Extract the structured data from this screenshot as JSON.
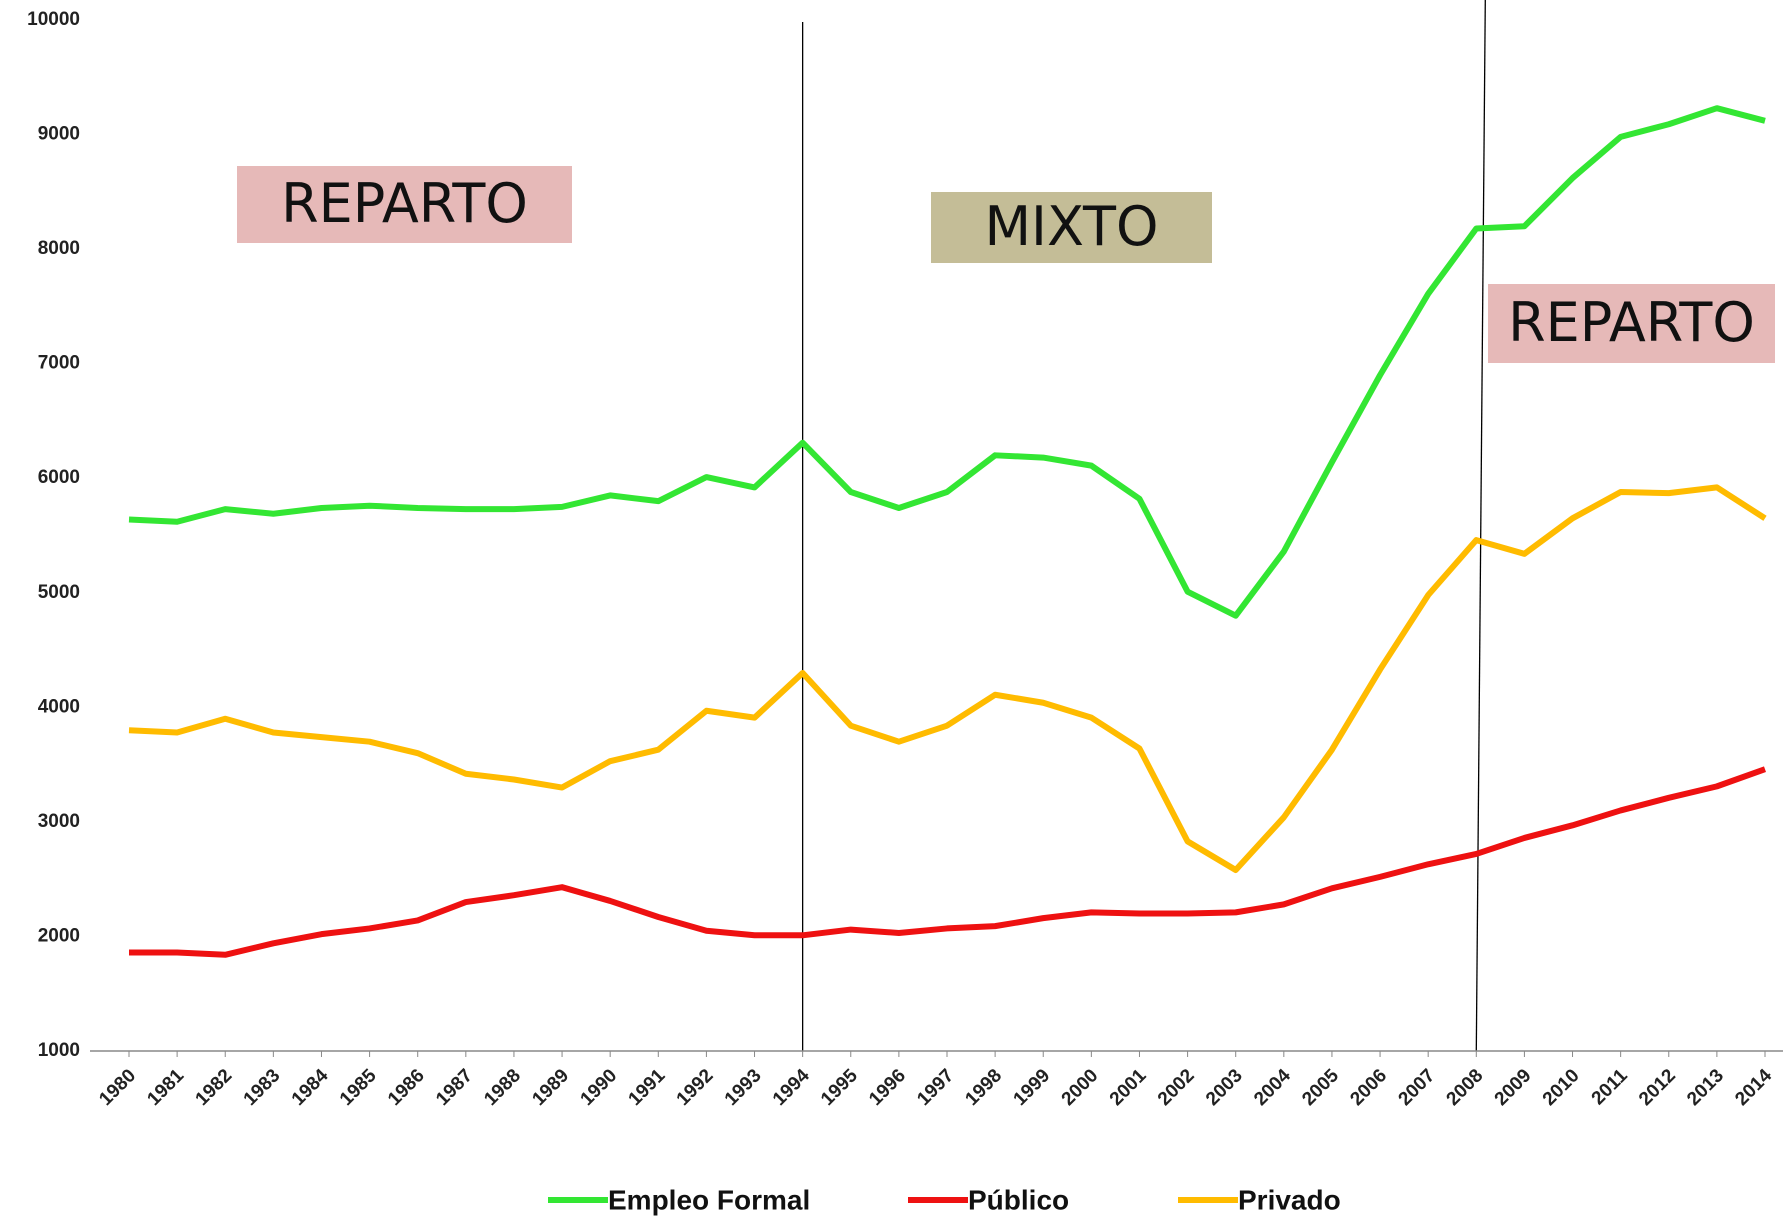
{
  "chart_data": {
    "type": "line",
    "categories": [
      "1980",
      "1981",
      "1982",
      "1983",
      "1984",
      "1985",
      "1986",
      "1987",
      "1988",
      "1989",
      "1990",
      "1991",
      "1992",
      "1993",
      "1994",
      "1995",
      "1996",
      "1997",
      "1998",
      "1999",
      "2000",
      "2001",
      "2002",
      "2003",
      "2004",
      "2005",
      "2006",
      "2007",
      "2008",
      "2009",
      "2010",
      "2011",
      "2012",
      "2013",
      "2014"
    ],
    "series": [
      {
        "name": "Empleo Formal",
        "color": "#33e633",
        "values": [
          5640,
          5620,
          5730,
          5690,
          5740,
          5760,
          5740,
          5730,
          5730,
          5750,
          5850,
          5800,
          6010,
          5920,
          6310,
          5880,
          5740,
          5880,
          6200,
          6180,
          6110,
          5820,
          5010,
          4800,
          5360,
          6140,
          6900,
          7610,
          8180,
          8200,
          8620,
          8980,
          9090,
          9230,
          9120
        ]
      },
      {
        "name": "Público",
        "color": "#ee1111",
        "values": [
          1860,
          1860,
          1840,
          1940,
          2020,
          2070,
          2140,
          2300,
          2360,
          2430,
          2310,
          2170,
          2050,
          2010,
          2010,
          2060,
          2030,
          2070,
          2090,
          2160,
          2210,
          2200,
          2200,
          2210,
          2280,
          2420,
          2520,
          2630,
          2720,
          2860,
          2970,
          3100,
          3210,
          3310,
          3460
        ]
      },
      {
        "name": "Privado",
        "color": "#ffbb00",
        "values": [
          3800,
          3780,
          3900,
          3780,
          3740,
          3700,
          3600,
          3420,
          3370,
          3300,
          3530,
          3630,
          3970,
          3910,
          4300,
          3840,
          3700,
          3840,
          4110,
          4040,
          3910,
          3640,
          2830,
          2580,
          3040,
          3630,
          4330,
          4980,
          5460,
          5340,
          5650,
          5880,
          5870,
          5920,
          5650
        ]
      }
    ],
    "ylim": [
      1000,
      10000
    ],
    "yticks": [
      1000,
      2000,
      3000,
      4000,
      5000,
      6000,
      7000,
      8000,
      9000,
      10000
    ],
    "grid": false,
    "legend": "bottom",
    "annotations": [
      {
        "text": "REPARTO",
        "color": "#e6b9b8"
      },
      {
        "text": "MIXTO",
        "color": "#c4bd97"
      },
      {
        "text": "REPARTO",
        "color": "#e6b9b8"
      }
    ]
  }
}
